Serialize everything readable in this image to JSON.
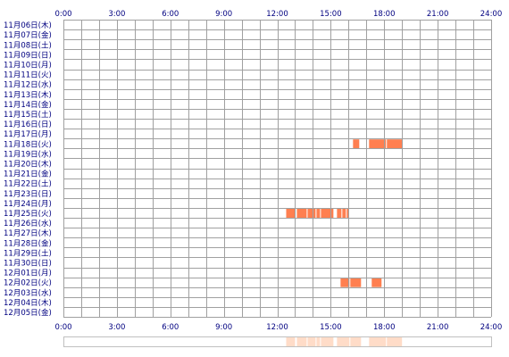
{
  "chart_data": {
    "type": "heatmap",
    "x_tick_labels": [
      "0:00",
      "3:00",
      "6:00",
      "9:00",
      "12:00",
      "15:00",
      "18:00",
      "21:00",
      "24:00"
    ],
    "x_range_hours": [
      0,
      24
    ],
    "grid": true,
    "rows": [
      "11月06日(木)",
      "11月07日(金)",
      "11月08日(土)",
      "11月09日(日)",
      "11月10日(月)",
      "11月11日(火)",
      "11月12日(水)",
      "11月13日(木)",
      "11月14日(金)",
      "11月15日(土)",
      "11月16日(日)",
      "11月17日(月)",
      "11月18日(火)",
      "11月19日(水)",
      "11月20日(木)",
      "11月21日(金)",
      "11月22日(土)",
      "11月23日(日)",
      "11月24日(月)",
      "11月25日(火)",
      "11月26日(水)",
      "11月27日(木)",
      "11月28日(金)",
      "11月29日(土)",
      "11月30日(日)",
      "12月01日(月)",
      "12月02日(火)",
      "12月03日(水)",
      "12月04日(木)",
      "12月05日(金)"
    ],
    "activity": [
      {
        "date": "11月18日(火)",
        "start_hour": 16.25,
        "end_hour": 16.6
      },
      {
        "date": "11月18日(火)",
        "start_hour": 17.15,
        "end_hour": 18.1
      },
      {
        "date": "11月18日(火)",
        "start_hour": 18.15,
        "end_hour": 19.0
      },
      {
        "date": "11月25日(火)",
        "start_hour": 12.5,
        "end_hour": 13.0
      },
      {
        "date": "11月25日(火)",
        "start_hour": 13.1,
        "end_hour": 13.65
      },
      {
        "date": "11月25日(火)",
        "start_hour": 13.7,
        "end_hour": 14.15
      },
      {
        "date": "11月25日(火)",
        "start_hour": 14.2,
        "end_hour": 14.4
      },
      {
        "date": "11月25日(火)",
        "start_hour": 14.45,
        "end_hour": 15.15
      },
      {
        "date": "11月25日(火)",
        "start_hour": 15.35,
        "end_hour": 15.6
      },
      {
        "date": "11月25日(火)",
        "start_hour": 15.65,
        "end_hour": 15.85
      },
      {
        "date": "11月25日(火)",
        "start_hour": 15.9,
        "end_hour": 16.0
      },
      {
        "date": "12月02日(火)",
        "start_hour": 15.55,
        "end_hour": 16.05
      },
      {
        "date": "12月02日(火)",
        "start_hour": 16.1,
        "end_hour": 16.7
      },
      {
        "date": "12月02日(火)",
        "start_hour": 17.3,
        "end_hour": 17.85
      }
    ],
    "colors": {
      "activity": "#ff7f50",
      "activity_light": "#ffdcc8",
      "grid": "#a0a0a0",
      "tick_label": "#000080",
      "row_label": "#000080",
      "plot_bg": "#ffffff",
      "summary_border": "#c0c0c0"
    }
  }
}
